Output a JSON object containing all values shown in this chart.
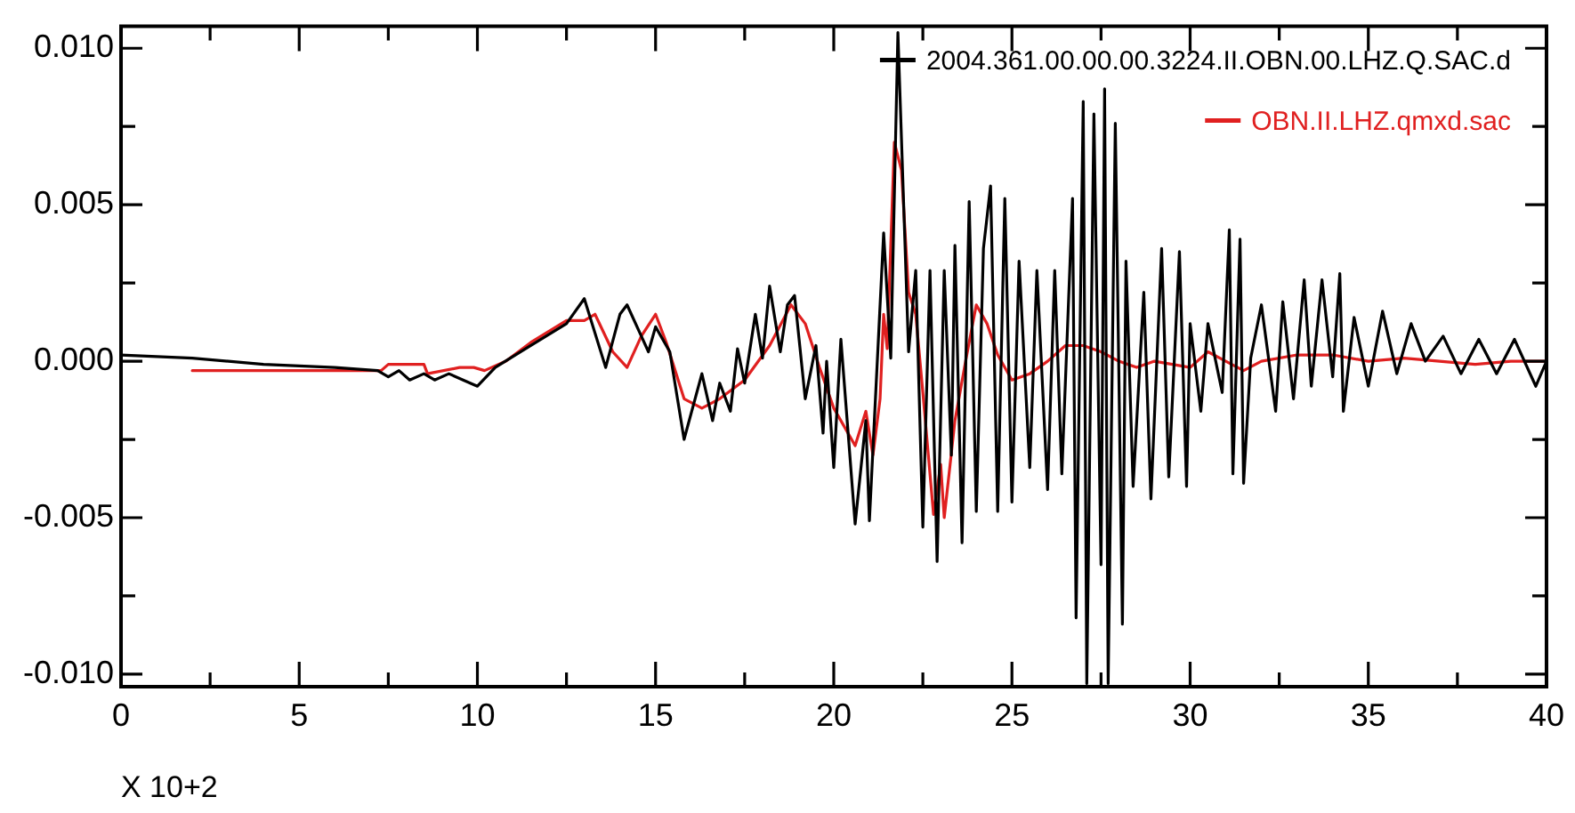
{
  "chart_data": {
    "type": "line",
    "xlabel": "X 10+2",
    "xlim": [
      0,
      40
    ],
    "ylim": [
      -0.0104,
      0.0107
    ],
    "xticks": [
      0,
      {
        "value": 2.5,
        "label": null
      },
      5,
      {
        "value": 7.5,
        "label": null
      },
      10,
      {
        "value": 12.5,
        "label": null
      },
      15,
      {
        "value": 17.5,
        "label": null
      },
      20,
      {
        "value": 22.5,
        "label": null
      },
      25,
      {
        "value": 27.5,
        "label": null
      },
      30,
      {
        "value": 32.5,
        "label": null
      },
      35,
      {
        "value": 37.5,
        "label": null
      },
      40
    ],
    "yticks": [
      {
        "value": -0.01,
        "label": "-0.010"
      },
      {
        "value": -0.0075,
        "label": null
      },
      {
        "value": -0.005,
        "label": "-0.005"
      },
      {
        "value": -0.0025,
        "label": null
      },
      {
        "value": 0,
        "label": "0.000"
      },
      {
        "value": 0.0025,
        "label": null
      },
      {
        "value": 0.005,
        "label": "0.005"
      },
      {
        "value": 0.0075,
        "label": null
      },
      {
        "value": 0.01,
        "label": "0.010"
      }
    ],
    "grid": false,
    "legend": "top right",
    "marker": "none",
    "line_style": "solid",
    "series": [
      {
        "name": "2004.361.00.00.00.3224.II.OBN.00.LHZ.Q.SAC.d",
        "color": "#000000",
        "x": [
          0,
          2,
          4,
          6,
          7.2,
          7.5,
          7.8,
          8.1,
          8.5,
          8.8,
          9.2,
          9.6,
          10.0,
          10.5,
          11.5,
          12.5,
          13.0,
          13.6,
          14.0,
          14.2,
          14.6,
          14.8,
          15.0,
          15.4,
          15.8,
          16.3,
          16.6,
          16.8,
          17.1,
          17.3,
          17.5,
          17.8,
          18.0,
          18.2,
          18.5,
          18.7,
          18.9,
          19.2,
          19.5,
          19.7,
          19.8,
          20.0,
          20.2,
          20.6,
          20.9,
          21.0,
          21.4,
          21.6,
          21.8,
          22.1,
          22.3,
          22.5,
          22.7,
          22.9,
          23.1,
          23.3,
          23.4,
          23.6,
          23.8,
          24.0,
          24.2,
          24.4,
          24.6,
          24.8,
          25.0,
          25.2,
          25.5,
          25.7,
          26.0,
          26.2,
          26.4,
          26.7,
          26.8,
          27.0,
          27.1,
          27.3,
          27.5,
          27.6,
          27.7,
          27.9,
          28.1,
          28.2,
          28.4,
          28.7,
          28.9,
          29.2,
          29.4,
          29.7,
          29.9,
          30.0,
          30.3,
          30.5,
          30.9,
          31.1,
          31.2,
          31.4,
          31.5,
          31.7,
          32.0,
          32.4,
          32.6,
          32.9,
          33.2,
          33.4,
          33.7,
          34.0,
          34.2,
          34.3,
          34.6,
          35.0,
          35.4,
          35.8,
          36.2,
          36.6,
          37.1,
          37.6,
          38.1,
          38.6,
          39.1,
          39.7,
          40.0
        ],
        "values": [
          0.0002,
          0.0001,
          -0.0001,
          -0.0002,
          -0.0003,
          -0.0005,
          -0.0003,
          -0.0006,
          -0.0004,
          -0.0006,
          -0.0004,
          -0.0006,
          -0.0008,
          -0.0002,
          0.0005,
          0.0012,
          0.002,
          -0.0002,
          0.0015,
          0.0018,
          0.0008,
          0.0003,
          0.0011,
          0.0003,
          -0.0025,
          -0.0004,
          -0.0019,
          -0.0007,
          -0.0016,
          0.0004,
          -0.0007,
          0.0015,
          0.0001,
          0.0024,
          0.0003,
          0.0018,
          0.0021,
          -0.0012,
          0.0005,
          -0.0023,
          0.0,
          -0.0034,
          0.0007,
          -0.0052,
          -0.0019,
          -0.0051,
          0.0041,
          0.0001,
          0.0105,
          0.0003,
          0.0029,
          -0.0053,
          0.0029,
          -0.0064,
          0.0029,
          -0.003,
          0.0037,
          -0.0058,
          0.0051,
          -0.0048,
          0.0036,
          0.0056,
          -0.0048,
          0.0052,
          -0.0045,
          0.0032,
          -0.0034,
          0.0029,
          -0.0041,
          0.0029,
          -0.0036,
          0.0052,
          -0.0082,
          0.0083,
          -0.0103,
          0.0079,
          -0.0065,
          0.0087,
          -0.0103,
          0.0076,
          -0.0084,
          0.0032,
          -0.004,
          0.0022,
          -0.0044,
          0.0036,
          -0.0037,
          0.0035,
          -0.004,
          0.0012,
          -0.0016,
          0.0012,
          -0.001,
          0.0042,
          -0.0036,
          0.0039,
          -0.0039,
          0.0001,
          0.0018,
          -0.0016,
          0.0019,
          -0.0012,
          0.0026,
          -0.0008,
          0.0026,
          -0.0005,
          0.0028,
          -0.0016,
          0.0014,
          -0.0008,
          0.0016,
          -0.0004,
          0.0012,
          0.0,
          0.0008,
          -0.0004,
          0.0007,
          -0.0004,
          0.0007,
          -0.0008,
          0.0
        ]
      },
      {
        "name": "OBN.II.LHZ.qmxd.sac",
        "color": "#e02020",
        "x": [
          2,
          7.3,
          7.5,
          8.5,
          8.6,
          9.5,
          9.9,
          10.2,
          10.8,
          11.5,
          12.5,
          13.0,
          13.3,
          13.8,
          14.2,
          14.6,
          15.0,
          15.3,
          15.8,
          16.3,
          16.8,
          17.5,
          18.2,
          18.8,
          19.2,
          19.6,
          20.0,
          20.6,
          20.9,
          21.1,
          21.3,
          21.4,
          21.5,
          21.7,
          21.9,
          22.1,
          22.3,
          22.5,
          22.8,
          23.0,
          23.1,
          23.4,
          23.7,
          24.0,
          24.3,
          24.6,
          25.0,
          25.5,
          26.0,
          26.5,
          27.0,
          27.5,
          28.0,
          28.5,
          29.0,
          29.5,
          30.0,
          30.5,
          31.0,
          31.5,
          32,
          33,
          34,
          35,
          36,
          37,
          38,
          39,
          40
        ],
        "values": [
          -0.0003,
          -0.0003,
          -0.0001,
          -0.0001,
          -0.0004,
          -0.0002,
          -0.0002,
          -0.0003,
          0.0,
          0.0006,
          0.0013,
          0.0013,
          0.0015,
          0.0003,
          -0.0002,
          0.0008,
          0.0015,
          0.0006,
          -0.0012,
          -0.0015,
          -0.0012,
          -0.0006,
          0.0005,
          0.0018,
          0.0012,
          -0.0002,
          -0.0015,
          -0.0027,
          -0.0016,
          -0.003,
          -0.0012,
          0.0015,
          0.0004,
          0.007,
          0.0061,
          0.0022,
          0.0015,
          -0.001,
          -0.0049,
          -0.0033,
          -0.005,
          -0.0019,
          0.0,
          0.0018,
          0.0012,
          0.0002,
          -0.0006,
          -0.0004,
          0.0,
          0.0005,
          0.0005,
          0.0003,
          0.0,
          -0.0002,
          0.0,
          -0.0001,
          -0.0002,
          0.0003,
          0.0,
          -0.0003,
          0.0,
          0.0002,
          0.0002,
          0.0,
          0.0001,
          0.0,
          -0.0001,
          0.0,
          0.0
        ]
      }
    ]
  }
}
